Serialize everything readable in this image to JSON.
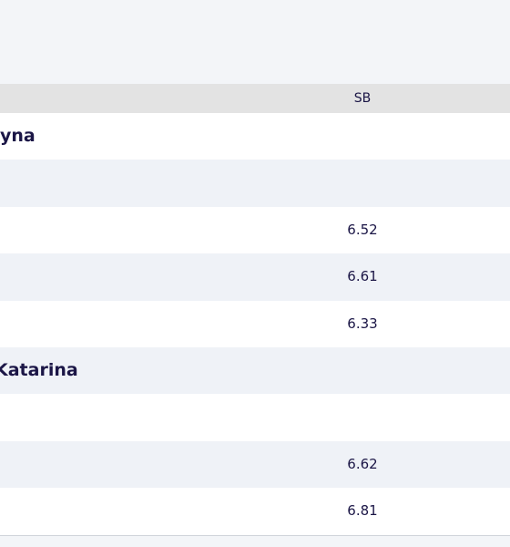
{
  "table": {
    "header": [
      "SB"
    ],
    "groups": [
      {
        "name": "yna",
        "sb": [
          6.52,
          6.61,
          6.33
        ]
      },
      {
        "name": "Katarina",
        "sb": [
          6.62,
          6.81
        ]
      }
    ]
  }
}
